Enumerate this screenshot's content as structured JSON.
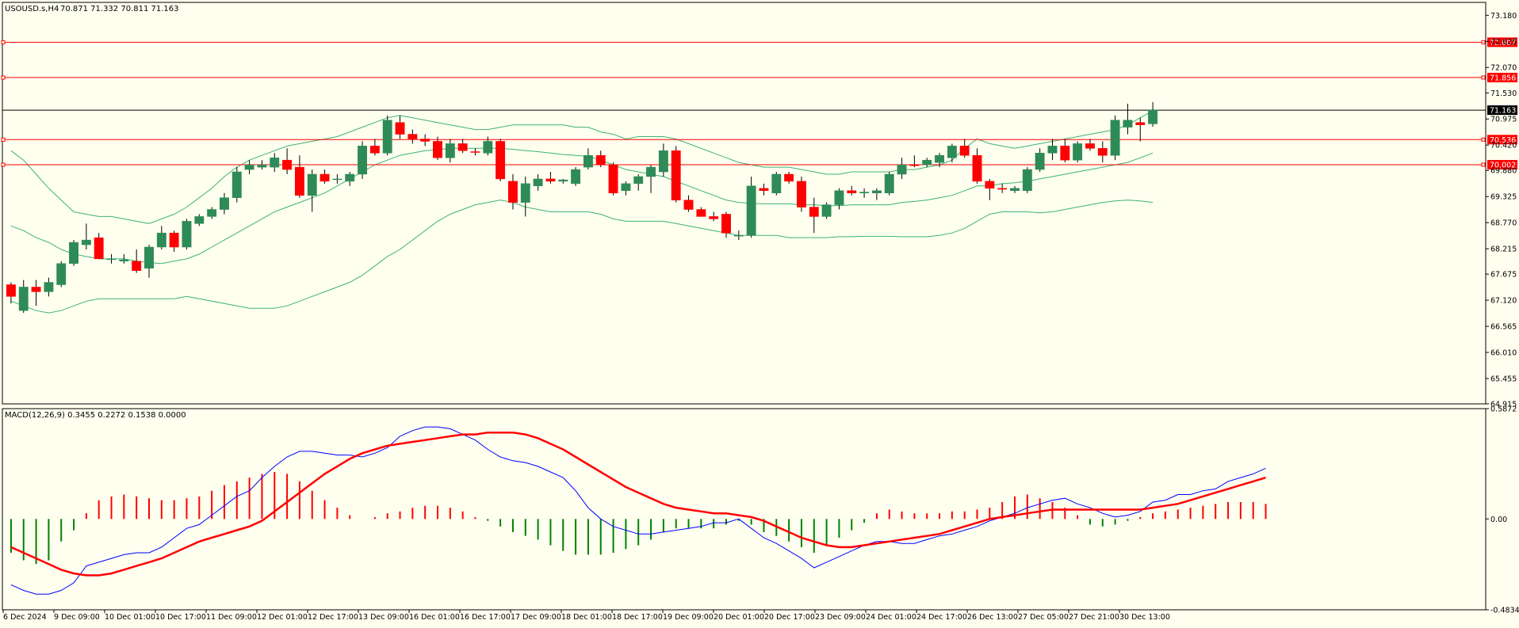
{
  "chart_data": [
    {
      "type": "candlestick",
      "title": "USOUSD.s,H4",
      "ohlc_readout": "70.871 71.332 70.811 71.163",
      "ylim": [
        64.915,
        73.455
      ],
      "y_ticks": [
        "73.180",
        "72.625",
        "72.070",
        "71.530",
        "70.975",
        "70.420",
        "69.880",
        "69.325",
        "68.770",
        "68.215",
        "67.675",
        "67.120",
        "66.565",
        "66.010",
        "65.455",
        "64.915"
      ],
      "x_ticks": [
        "6 Dec 2024",
        "9 Dec 09:00",
        "10 Dec 01:00",
        "10 Dec 17:00",
        "11 Dec 09:00",
        "12 Dec 01:00",
        "12 Dec 17:00",
        "13 Dec 09:00",
        "16 Dec 01:00",
        "16 Dec 17:00",
        "17 Dec 09:00",
        "18 Dec 01:00",
        "18 Dec 17:00",
        "19 Dec 09:00",
        "20 Dec 01:00",
        "20 Dec 17:00",
        "23 Dec 09:00",
        "24 Dec 01:00",
        "24 Dec 17:00",
        "26 Dec 13:00",
        "27 Dec 05:00",
        "27 Dec 21:00",
        "30 Dec 13:00"
      ],
      "horizontal_lines": [
        {
          "label": "72.607",
          "value": 72.607,
          "color": "#ff0000"
        },
        {
          "label": "71.856",
          "value": 71.856,
          "color": "#ff0000"
        },
        {
          "label": "70.536",
          "value": 70.536,
          "color": "#ff0000"
        },
        {
          "label": "70.002",
          "value": 70.002,
          "color": "#ff0000"
        }
      ],
      "current_price": {
        "label": "71.163",
        "value": 71.163,
        "color": "#000000"
      },
      "candles": [
        [
          67.45,
          67.5,
          67.05,
          67.2
        ],
        [
          66.9,
          67.55,
          66.85,
          67.4
        ],
        [
          67.4,
          67.55,
          67.0,
          67.3
        ],
        [
          67.3,
          67.6,
          67.2,
          67.5
        ],
        [
          67.45,
          67.95,
          67.4,
          67.9
        ],
        [
          67.9,
          68.4,
          67.85,
          68.35
        ],
        [
          68.3,
          68.75,
          68.2,
          68.4
        ],
        [
          68.45,
          68.55,
          68.0,
          68.0
        ],
        [
          68.0,
          68.1,
          67.9,
          68.0
        ],
        [
          67.95,
          68.1,
          67.9,
          67.98
        ],
        [
          67.95,
          68.2,
          67.7,
          67.75
        ],
        [
          67.8,
          68.3,
          67.6,
          68.25
        ],
        [
          68.25,
          68.7,
          68.2,
          68.55
        ],
        [
          68.55,
          68.6,
          68.15,
          68.25
        ],
        [
          68.25,
          68.85,
          68.2,
          68.8
        ],
        [
          68.75,
          68.95,
          68.7,
          68.9
        ],
        [
          68.9,
          69.1,
          68.85,
          69.05
        ],
        [
          69.05,
          69.4,
          68.95,
          69.3
        ],
        [
          69.3,
          69.95,
          69.2,
          69.85
        ],
        [
          69.9,
          70.1,
          69.8,
          70.0
        ],
        [
          69.95,
          70.1,
          69.9,
          70.0
        ],
        [
          69.95,
          70.25,
          69.85,
          70.15
        ],
        [
          70.1,
          70.35,
          69.8,
          69.9
        ],
        [
          69.95,
          70.2,
          69.3,
          69.35
        ],
        [
          69.35,
          69.9,
          69.0,
          69.8
        ],
        [
          69.8,
          69.9,
          69.6,
          69.65
        ],
        [
          69.7,
          69.8,
          69.6,
          69.7
        ],
        [
          69.65,
          69.85,
          69.55,
          69.8
        ],
        [
          69.8,
          70.5,
          69.7,
          70.4
        ],
        [
          70.4,
          70.55,
          70.2,
          70.25
        ],
        [
          70.25,
          71.05,
          70.2,
          70.95
        ],
        [
          70.9,
          71.05,
          70.55,
          70.65
        ],
        [
          70.65,
          70.75,
          70.45,
          70.55
        ],
        [
          70.55,
          70.65,
          70.4,
          70.5
        ],
        [
          70.5,
          70.6,
          70.1,
          70.15
        ],
        [
          70.15,
          70.55,
          70.05,
          70.45
        ],
        [
          70.45,
          70.55,
          70.25,
          70.3
        ],
        [
          70.28,
          70.35,
          70.2,
          70.27
        ],
        [
          70.25,
          70.6,
          70.2,
          70.5
        ],
        [
          70.5,
          70.55,
          69.65,
          69.7
        ],
        [
          69.65,
          69.8,
          69.05,
          69.2
        ],
        [
          69.2,
          69.75,
          68.9,
          69.6
        ],
        [
          69.55,
          69.8,
          69.45,
          69.7
        ],
        [
          69.7,
          69.85,
          69.6,
          69.65
        ],
        [
          69.65,
          69.7,
          69.6,
          69.68
        ],
        [
          69.6,
          69.95,
          69.55,
          69.9
        ],
        [
          69.95,
          70.35,
          69.9,
          70.2
        ],
        [
          70.2,
          70.3,
          69.95,
          70.0
        ],
        [
          70.0,
          70.05,
          69.35,
          69.4
        ],
        [
          69.45,
          69.65,
          69.35,
          69.6
        ],
        [
          69.6,
          69.8,
          69.45,
          69.75
        ],
        [
          69.75,
          70.0,
          69.4,
          69.95
        ],
        [
          69.85,
          70.45,
          69.75,
          70.3
        ],
        [
          70.3,
          70.4,
          69.2,
          69.25
        ],
        [
          69.25,
          69.35,
          69.0,
          69.05
        ],
        [
          69.05,
          69.1,
          68.9,
          68.9
        ],
        [
          68.9,
          69.0,
          68.8,
          68.85
        ],
        [
          68.95,
          69.0,
          68.45,
          68.55
        ],
        [
          68.5,
          68.6,
          68.4,
          68.5
        ],
        [
          68.5,
          69.75,
          68.45,
          69.55
        ],
        [
          69.5,
          69.6,
          69.35,
          69.45
        ],
        [
          69.4,
          69.85,
          69.35,
          69.8
        ],
        [
          69.8,
          69.85,
          69.6,
          69.65
        ],
        [
          69.65,
          69.75,
          69.0,
          69.1
        ],
        [
          69.1,
          69.3,
          68.55,
          68.9
        ],
        [
          68.9,
          69.2,
          68.85,
          69.15
        ],
        [
          69.15,
          69.5,
          69.05,
          69.45
        ],
        [
          69.45,
          69.55,
          69.35,
          69.4
        ],
        [
          69.4,
          69.5,
          69.3,
          69.42
        ],
        [
          69.4,
          69.5,
          69.25,
          69.45
        ],
        [
          69.4,
          69.85,
          69.35,
          69.8
        ],
        [
          69.8,
          70.15,
          69.7,
          70.0
        ],
        [
          70.0,
          70.2,
          69.95,
          69.98
        ],
        [
          70.0,
          70.15,
          69.95,
          70.1
        ],
        [
          70.05,
          70.25,
          69.95,
          70.2
        ],
        [
          70.15,
          70.45,
          70.05,
          70.4
        ],
        [
          70.4,
          70.55,
          70.15,
          70.2
        ],
        [
          70.2,
          70.35,
          69.6,
          69.65
        ],
        [
          69.65,
          69.7,
          69.25,
          69.5
        ],
        [
          69.5,
          69.6,
          69.4,
          69.48
        ],
        [
          69.45,
          69.55,
          69.4,
          69.5
        ],
        [
          69.45,
          69.95,
          69.4,
          69.9
        ],
        [
          69.9,
          70.35,
          69.85,
          70.25
        ],
        [
          70.25,
          70.55,
          70.1,
          70.4
        ],
        [
          70.4,
          70.55,
          70.05,
          70.1
        ],
        [
          70.1,
          70.5,
          70.05,
          70.45
        ],
        [
          70.45,
          70.55,
          70.3,
          70.35
        ],
        [
          70.35,
          70.5,
          70.05,
          70.2
        ],
        [
          70.2,
          71.05,
          70.1,
          70.95
        ],
        [
          70.8,
          71.3,
          70.65,
          70.95
        ],
        [
          70.9,
          71.0,
          70.5,
          70.85
        ],
        [
          70.871,
          71.332,
          70.811,
          71.163
        ]
      ],
      "bollinger": {
        "upper": [
          70.3,
          70.1,
          69.8,
          69.5,
          69.25,
          69.0,
          68.95,
          68.9,
          68.9,
          68.85,
          68.8,
          68.75,
          68.85,
          68.95,
          69.1,
          69.3,
          69.5,
          69.75,
          69.95,
          70.1,
          70.2,
          70.3,
          70.4,
          70.45,
          70.5,
          70.55,
          70.6,
          70.7,
          70.8,
          70.9,
          71.0,
          71.05,
          71.0,
          70.95,
          70.9,
          70.85,
          70.8,
          70.75,
          70.75,
          70.8,
          70.85,
          70.85,
          70.85,
          70.85,
          70.85,
          70.8,
          70.8,
          70.7,
          70.65,
          70.55,
          70.6,
          70.6,
          70.6,
          70.55,
          70.45,
          70.35,
          70.25,
          70.15,
          70.05,
          70.0,
          69.95,
          69.95,
          69.95,
          69.9,
          69.85,
          69.8,
          69.8,
          69.85,
          69.85,
          69.85,
          69.85,
          69.9,
          69.9,
          69.95,
          70.0,
          70.1,
          70.35,
          70.55,
          70.45,
          70.4,
          70.35,
          70.4,
          70.45,
          70.5,
          70.55,
          70.6,
          70.65,
          70.7,
          70.75,
          70.85,
          71.0,
          71.15
        ],
        "middle": [
          68.7,
          68.6,
          68.45,
          68.35,
          68.2,
          68.1,
          68.05,
          68.0,
          68.0,
          68.0,
          67.95,
          67.92,
          67.9,
          67.95,
          68.0,
          68.1,
          68.25,
          68.4,
          68.55,
          68.7,
          68.85,
          69.0,
          69.1,
          69.2,
          69.3,
          69.4,
          69.55,
          69.7,
          69.85,
          70.0,
          70.1,
          70.2,
          70.25,
          70.3,
          70.32,
          70.35,
          70.35,
          70.35,
          70.35,
          70.35,
          70.33,
          70.3,
          70.28,
          70.25,
          70.22,
          70.2,
          70.18,
          70.1,
          70.0,
          69.9,
          69.85,
          69.8,
          69.75,
          69.65,
          69.55,
          69.45,
          69.35,
          69.25,
          69.2,
          69.18,
          69.17,
          69.17,
          69.17,
          69.15,
          69.15,
          69.13,
          69.13,
          69.15,
          69.15,
          69.15,
          69.15,
          69.2,
          69.22,
          69.25,
          69.3,
          69.35,
          69.45,
          69.55,
          69.55,
          69.6,
          69.62,
          69.65,
          69.7,
          69.75,
          69.8,
          69.85,
          69.9,
          69.95,
          70.0,
          70.05,
          70.15,
          70.25
        ],
        "lower": [
          67.1,
          67.0,
          66.9,
          66.85,
          66.9,
          67.0,
          67.1,
          67.15,
          67.15,
          67.15,
          67.15,
          67.15,
          67.15,
          67.15,
          67.2,
          67.15,
          67.1,
          67.05,
          67.0,
          66.95,
          66.95,
          66.95,
          67.0,
          67.1,
          67.2,
          67.3,
          67.4,
          67.5,
          67.65,
          67.85,
          68.05,
          68.2,
          68.4,
          68.6,
          68.8,
          68.95,
          69.05,
          69.15,
          69.2,
          69.25,
          69.2,
          69.1,
          69.05,
          69.0,
          69.0,
          69.0,
          69.0,
          68.95,
          68.85,
          68.8,
          68.8,
          68.8,
          68.8,
          68.75,
          68.7,
          68.65,
          68.6,
          68.55,
          68.5,
          68.5,
          68.5,
          68.5,
          68.45,
          68.45,
          68.45,
          68.45,
          68.47,
          68.47,
          68.48,
          68.48,
          68.48,
          68.47,
          68.47,
          68.47,
          68.5,
          68.55,
          68.65,
          68.8,
          68.95,
          69.0,
          69.0,
          69.0,
          68.98,
          69.0,
          69.05,
          69.1,
          69.15,
          69.2,
          69.23,
          69.25,
          69.23,
          69.2
        ]
      }
    },
    {
      "type": "macd",
      "title": "MACD(12,26,9) 0.3455 0.2272 0.1538 0.0000",
      "ylim": [
        -0.4834,
        0.5872
      ],
      "y_ticks": [
        "0.5872",
        "0.00",
        "-0.4834"
      ],
      "macd": [
        -0.35,
        -0.38,
        -0.4,
        -0.4,
        -0.38,
        -0.34,
        -0.25,
        -0.23,
        -0.21,
        -0.19,
        -0.18,
        -0.18,
        -0.15,
        -0.1,
        -0.05,
        -0.03,
        0.02,
        0.07,
        0.12,
        0.15,
        0.22,
        0.28,
        0.33,
        0.36,
        0.36,
        0.35,
        0.34,
        0.34,
        0.33,
        0.35,
        0.38,
        0.44,
        0.47,
        0.49,
        0.49,
        0.48,
        0.45,
        0.42,
        0.37,
        0.33,
        0.31,
        0.3,
        0.28,
        0.25,
        0.22,
        0.15,
        0.06,
        0.0,
        -0.04,
        -0.06,
        -0.08,
        -0.08,
        -0.07,
        -0.06,
        -0.05,
        -0.04,
        -0.02,
        -0.02,
        0.0,
        -0.05,
        -0.1,
        -0.13,
        -0.17,
        -0.21,
        -0.26,
        -0.23,
        -0.2,
        -0.17,
        -0.14,
        -0.12,
        -0.12,
        -0.13,
        -0.13,
        -0.11,
        -0.09,
        -0.08,
        -0.06,
        -0.04,
        -0.01,
        0.01,
        0.03,
        0.06,
        0.08,
        0.1,
        0.11,
        0.08,
        0.06,
        0.03,
        0.01,
        0.02,
        0.04,
        0.09,
        0.1,
        0.13,
        0.13,
        0.15,
        0.16,
        0.2,
        0.22,
        0.24,
        0.27
      ],
      "signal": [
        -0.15,
        -0.18,
        -0.21,
        -0.24,
        -0.27,
        -0.29,
        -0.3,
        -0.3,
        -0.29,
        -0.27,
        -0.25,
        -0.23,
        -0.21,
        -0.18,
        -0.15,
        -0.12,
        -0.1,
        -0.08,
        -0.06,
        -0.04,
        -0.01,
        0.04,
        0.09,
        0.14,
        0.19,
        0.24,
        0.28,
        0.32,
        0.35,
        0.37,
        0.39,
        0.4,
        0.41,
        0.42,
        0.43,
        0.44,
        0.45,
        0.45,
        0.46,
        0.46,
        0.46,
        0.45,
        0.43,
        0.4,
        0.37,
        0.33,
        0.29,
        0.25,
        0.21,
        0.17,
        0.14,
        0.11,
        0.08,
        0.06,
        0.05,
        0.04,
        0.03,
        0.03,
        0.02,
        0.01,
        -0.01,
        -0.04,
        -0.07,
        -0.1,
        -0.12,
        -0.14,
        -0.15,
        -0.15,
        -0.14,
        -0.13,
        -0.12,
        -0.11,
        -0.1,
        -0.09,
        -0.08,
        -0.06,
        -0.04,
        -0.02,
        0.0,
        0.01,
        0.02,
        0.03,
        0.04,
        0.05,
        0.05,
        0.05,
        0.05,
        0.05,
        0.05,
        0.05,
        0.05,
        0.06,
        0.07,
        0.08,
        0.1,
        0.12,
        0.14,
        0.16,
        0.18,
        0.2,
        0.22
      ],
      "histogram": [
        -0.18,
        -0.22,
        -0.24,
        -0.22,
        -0.12,
        -0.06,
        0.03,
        0.1,
        0.12,
        0.13,
        0.12,
        0.11,
        0.1,
        0.1,
        0.11,
        0.12,
        0.15,
        0.18,
        0.2,
        0.22,
        0.24,
        0.25,
        0.24,
        0.2,
        0.15,
        0.1,
        0.06,
        0.02,
        0.0,
        0.01,
        0.03,
        0.04,
        0.06,
        0.07,
        0.07,
        0.06,
        0.04,
        0.01,
        -0.01,
        -0.04,
        -0.07,
        -0.09,
        -0.11,
        -0.14,
        -0.17,
        -0.19,
        -0.19,
        -0.19,
        -0.18,
        -0.16,
        -0.14,
        -0.11,
        -0.07,
        -0.05,
        -0.05,
        -0.05,
        -0.05,
        -0.03,
        -0.01,
        -0.03,
        -0.07,
        -0.09,
        -0.12,
        -0.15,
        -0.18,
        -0.14,
        -0.1,
        -0.06,
        -0.02,
        0.03,
        0.05,
        0.04,
        0.03,
        0.03,
        0.03,
        0.04,
        0.04,
        0.05,
        0.06,
        0.09,
        0.12,
        0.13,
        0.11,
        0.09,
        0.06,
        0.02,
        -0.03,
        -0.04,
        -0.03,
        -0.01,
        0.01,
        0.03,
        0.04,
        0.05,
        0.06,
        0.07,
        0.08,
        0.09,
        0.09,
        0.09,
        0.08
      ],
      "colors": {
        "macd": "#0000ff",
        "signal": "#ff0000",
        "hist_pos": "#ff0000",
        "hist_neg": "#008000"
      }
    }
  ]
}
